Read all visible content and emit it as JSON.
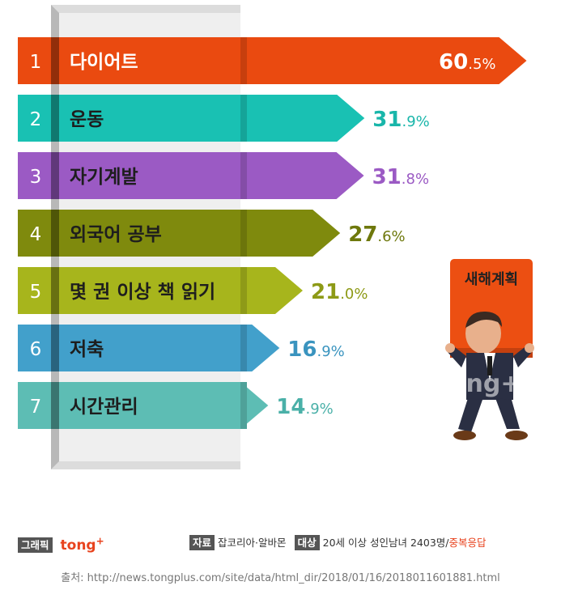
{
  "chart_data": {
    "type": "bar",
    "categories": [
      "다이어트",
      "운동",
      "자기계발",
      "외국어 공부",
      "몇 권 이상 책 읽기",
      "저축",
      "시간관리"
    ],
    "ranks": [
      "1",
      "2",
      "3",
      "4",
      "5",
      "6",
      "7"
    ],
    "values": [
      60.5,
      31.9,
      31.8,
      27.6,
      21.0,
      16.9,
      14.9
    ],
    "value_labels": [
      "60.5",
      "31.9",
      "31.8",
      "27.6",
      "21.0",
      "16.9",
      "14.9"
    ],
    "unit": "%",
    "colors": [
      "#ea4a10",
      "#19c1b3",
      "#9b5ac4",
      "#7f8a0d",
      "#a7b51c",
      "#42a0cb",
      "#5dbdb4"
    ],
    "label_colors": [
      "#ffffff",
      "#19b6aa",
      "#9b5ac4",
      "#6e780c",
      "#8d9a16",
      "#3a94bf",
      "#4ab0a8"
    ]
  },
  "illustration": {
    "sign_text": "새해계획",
    "watermark": "tong+"
  },
  "footer": {
    "graphic_label": "그래픽",
    "brand": "tong",
    "brand_sup": "+",
    "source_chip": "자료",
    "source_text": "잡코리아·알바몬",
    "target_chip": "대상",
    "target_text": "20세 이상 성인남녀 2403명/",
    "target_note": "중복응답",
    "url": "출처: http://news.tongplus.com/site/data/html_dir/2018/01/16/2018011601881.html"
  }
}
